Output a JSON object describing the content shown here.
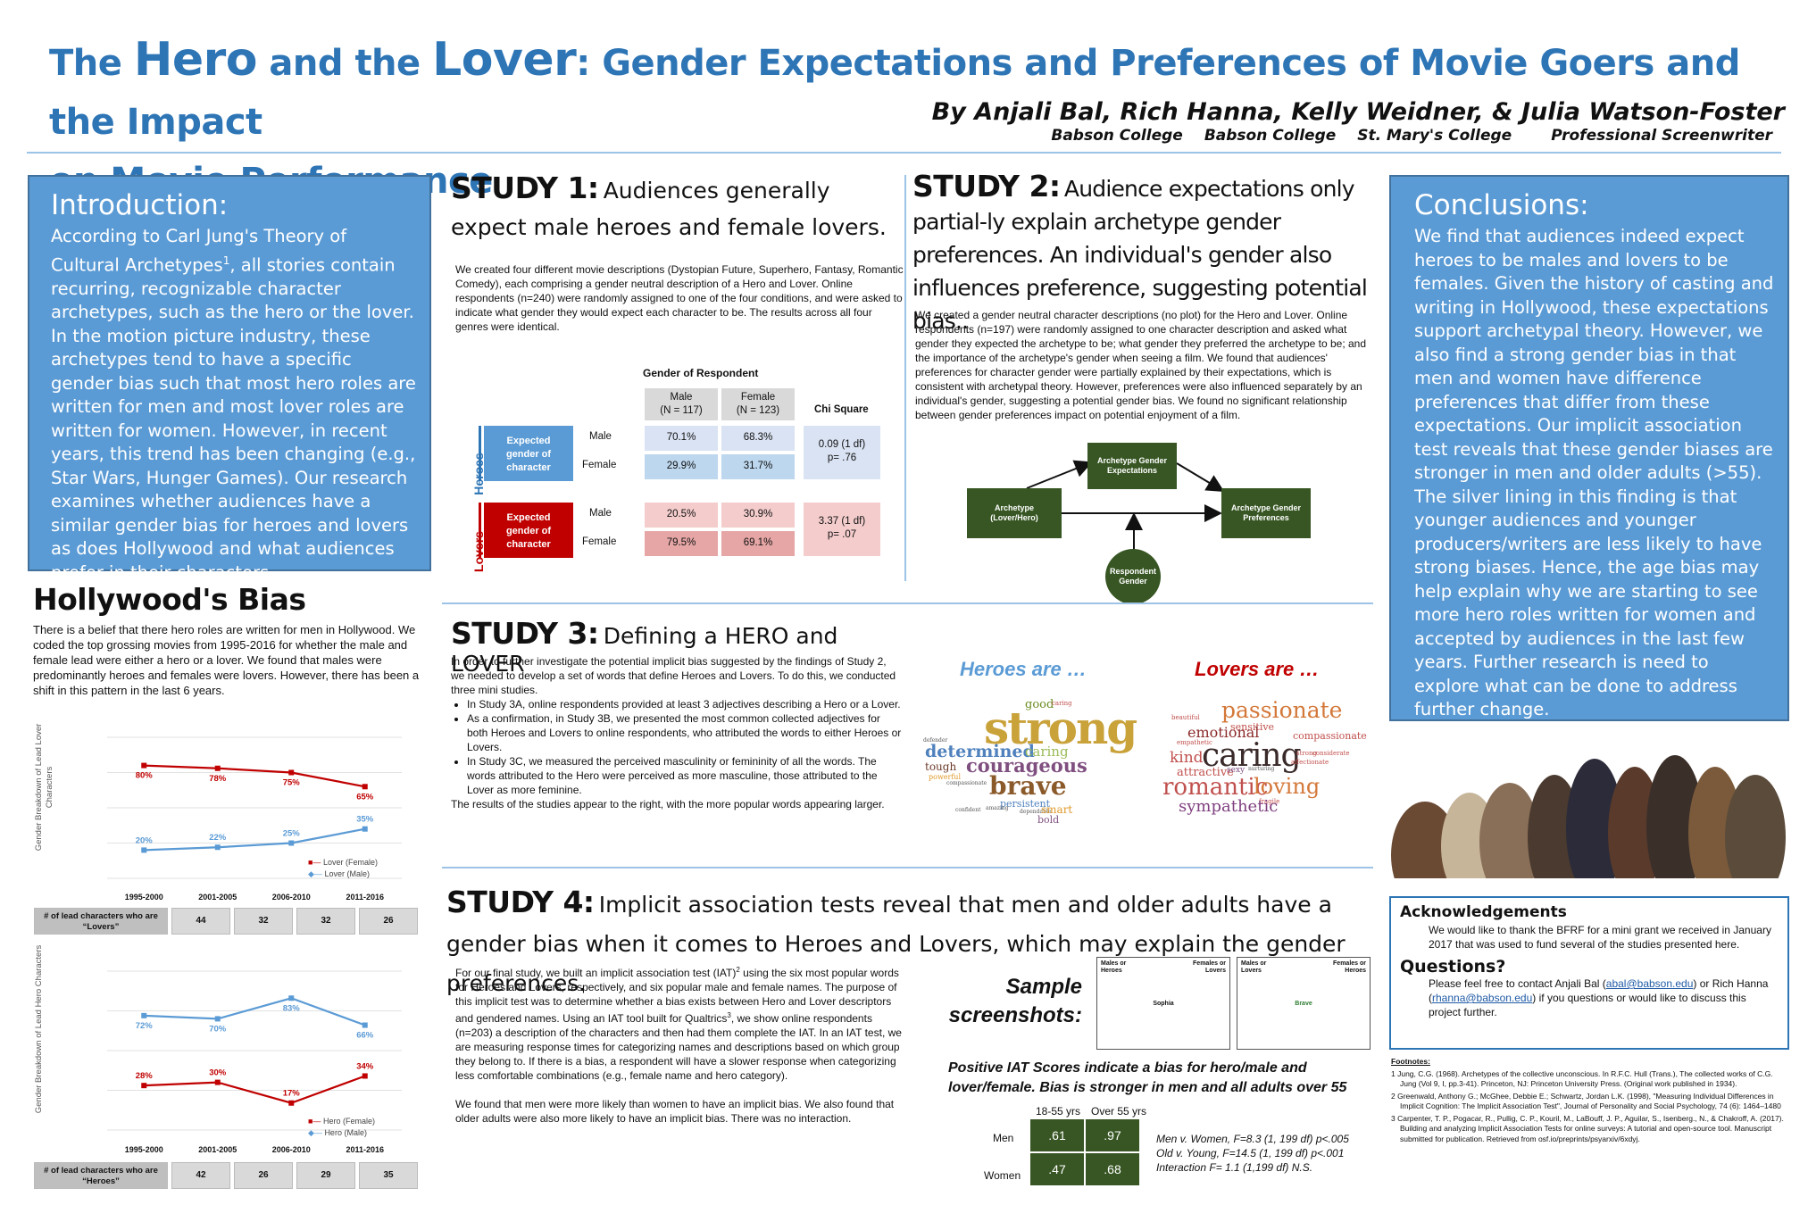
{
  "title": {
    "p1": "The ",
    "hero": "Hero",
    "p2": " and the ",
    "lover": "Lover",
    "p3": ": Gender Expectations and Preferences of Movie Goers and the Impact",
    "line2": "on Movie Performance"
  },
  "authors": "By Anjali Bal, Rich Hanna, Kelly Weidner, & Julia Watson-Foster",
  "affiliations": [
    "Babson College",
    "Babson College",
    "St. Mary's College",
    "Professional Screenwriter"
  ],
  "intro": {
    "heading": "Introduction:",
    "text_a": "According to Carl Jung's Theory of Cultural Archetypes",
    "sup": "1",
    "text_b": ", all stories contain recurring, recognizable character archetypes, such as the hero or the lover. In the motion picture industry, these archetypes tend to have a specific gender bias such that most hero roles are written for men and most lover roles are written for women. However, in recent years, this trend has been changing (e.g., Star Wars, Hunger Games). Our research examines whether audiences have a similar gender bias for heroes and lovers as does Hollywood and what audiences prefer in their characters."
  },
  "hollywood": {
    "heading": "Hollywood's Bias",
    "text": "There is a belief that there hero roles are written for men in Hollywood. We coded the top grossing movies from 1995-2016 for whether the male and female lead were either a hero or a lover. We found that males were predominantly heroes and females were lovers. However, there has been a shift in this pattern in the last 6 years.",
    "count_label_lovers": "# of lead characters who are “Lovers”",
    "count_label_heroes": "# of lead characters who are “Heroes”",
    "lover_counts": [
      "44",
      "32",
      "32",
      "26"
    ],
    "hero_counts": [
      "42",
      "26",
      "29",
      "35"
    ]
  },
  "chart_data": [
    {
      "type": "line",
      "ylabel": "Gender Breakdown of Lead Lover Characters",
      "categories": [
        "1995-2000",
        "2001-2005",
        "2006-2010",
        "2011-2016"
      ],
      "series": [
        {
          "name": "Lover (Female)",
          "values": [
            80,
            78,
            75,
            65
          ],
          "labels": [
            "80%",
            "78%",
            "75%",
            "65%"
          ],
          "color": "#c00000"
        },
        {
          "name": "Lover (Male)",
          "values": [
            20,
            22,
            25,
            35
          ],
          "labels": [
            "20%",
            "22%",
            "25%",
            "35%"
          ],
          "color": "#5b9bd5"
        }
      ]
    },
    {
      "type": "line",
      "ylabel": "Gender Breakdown of Lead Hero Characters",
      "categories": [
        "1995-2000",
        "2001-2005",
        "2006-2010",
        "2011-2016"
      ],
      "series": [
        {
          "name": "Hero (Female)",
          "values": [
            28,
            30,
            17,
            34
          ],
          "labels": [
            "28%",
            "30%",
            "17%",
            "34%"
          ],
          "color": "#c00000"
        },
        {
          "name": "Hero (Male)",
          "values": [
            72,
            70,
            83,
            66
          ],
          "labels": [
            "72%",
            "70%",
            "83%",
            "66%"
          ],
          "color": "#5b9bd5"
        }
      ]
    }
  ],
  "study1": {
    "label": "STUDY 1:",
    "title": "Audiences generally expect male heroes and female lovers.",
    "text": "We created four different movie descriptions (Dystopian Future, Superhero, Fantasy, Romantic Comedy), each comprising a gender neutral description of a Hero and Lover. Online respondents (n=240) were randomly assigned to one of the four conditions, and were asked to indicate what gender they would expect each character to be. The results across all four genres were identical.",
    "table": {
      "gender_header": "Gender of Respondent",
      "col_male": "Male",
      "col_male_n": "(N = 117)",
      "col_female": "Female",
      "col_female_n": "(N = 123)",
      "chi": "Chi Square",
      "heroes": "Heroes",
      "lovers": "Lovers",
      "expected": "Expected gender of character",
      "row_male": "Male",
      "row_female": "Female",
      "h_male": [
        "70.1%",
        "68.3%"
      ],
      "h_female": [
        "29.9%",
        "31.7%"
      ],
      "h_chi1": "0.09 (1 df)",
      "h_chi2": "p= .76",
      "l_male": [
        "20.5%",
        "30.9%"
      ],
      "l_female": [
        "79.5%",
        "69.1%"
      ],
      "l_chi1": "3.37 (1 df)",
      "l_chi2": "p= .07"
    }
  },
  "study2": {
    "label": "STUDY 2:",
    "title_a": "Audience expectations only partial-",
    "title_b": "ly explain archetype gender preferences. An individual's gender also influences preference, suggesting potential bias..",
    "text": "We created a gender neutral character descriptions (no plot) for the Hero and Lover. Online respondents (n=197) were randomly assigned to one character description and asked what gender they expected the archetype to be; what gender they preferred the archetype to be; and the importance of the archetype's gender when seeing a film. We found that audiences' preferences for character gender were partially explained by their expectations, which is consistent with archetypal theory. However, preferences were also influenced separately by an individual's gender, suggesting a potential gender bias. We found no significant relationship between gender preferences impact on potential enjoyment of a film.",
    "nodes": {
      "archetype": "Archetype (Lover/Hero)",
      "expect": "Archetype Gender Expectations",
      "pref": "Archetype Gender Preferences",
      "resp": "Respondent Gender"
    }
  },
  "study3": {
    "label": "STUDY 3:",
    "title": "Defining a HERO and LOVER",
    "intro": "In order to further investigate the potential implicit bias suggested by the findings of Study 2, we needed to develop a set of words that define Heroes and Lovers. To do this, we conducted three mini studies.",
    "bullets": [
      "In Study 3A, online respondents provided at least 3 adjectives describing a Hero or a Lover.",
      "As a confirmation, in Study 3B, we presented the most common collected adjectives for both Heroes and Lovers to online respondents, who attributed the words to either Heroes or Lovers.",
      "In Study 3C, we measured the perceived masculinity or femininity of all the words. The words attributed to the Hero were perceived as more masculine, those attributed to the Lover as more feminine."
    ],
    "outro": "The results of the studies appear to the right, with the more popular words appearing larger.",
    "heroes_are": "Heroes are …",
    "lovers_are": "Lovers are …",
    "hero_words": [
      "good",
      "caring",
      "strong",
      "determined",
      "caring",
      "tough",
      "courageous",
      "powerful",
      "compassionate",
      "brave",
      "persistent",
      "confident",
      "amazing",
      "dependable",
      "smart",
      "bold",
      "defender"
    ],
    "lover_words": [
      "passionate",
      "sensitive",
      "beautiful",
      "emotional",
      "compassionate",
      "empathetic",
      "kind",
      "caring",
      "considerate",
      "strong",
      "affectionate",
      "attractive",
      "sexy",
      "nurturing",
      "romantic",
      "loving",
      "fragile",
      "sympathetic"
    ]
  },
  "study4": {
    "label": "STUDY 4:",
    "title": "Implicit association tests reveal that men and older adults have a gender bias when it comes to Heroes and Lovers, which may explain the gender preferences.",
    "text_a": "For our final study, we built an implicit association test (IAT)",
    "sup2": "2",
    "text_b": " using the six most popular words for Heroes and Lovers, respectively, and six popular male and female names. The purpose of this implicit test was to determine whether a bias exists between Hero and Lover descriptors and gendered names. Using an IAT tool built for Qualtrics",
    "sup3": "3",
    "text_c": ", we show online respondents (n=203) a description of the characters and then had them complete the IAT. In an IAT test, we are measuring response times for categorizing names and descriptions based on which group they belong to. If there is a bias, a respondent will have a slower response when categorizing less comfortable combinations (e.g., female name and hero category).",
    "text2": "We found that men were more likely than women to have an implicit bias. We also found that older adults were also more likely to have an implicit bias. There was no interaction.",
    "sample": "Sample screenshots:",
    "shot1": {
      "tl": "Males or Heroes",
      "tr": "Females or Lovers",
      "center": "Sophia"
    },
    "shot2": {
      "tl": "Males or Lovers",
      "tr": "Females or Heroes",
      "center": "Brave"
    },
    "iat_title": "Positive IAT Scores indicate a bias for hero/male and lover/female. Bias is stronger in men and all adults over 55",
    "col1": "18-55 yrs",
    "col2": "Over 55 yrs",
    "row1": "Men",
    "row2": "Women",
    "men": [
      ".61",
      ".97"
    ],
    "women": [
      ".47",
      ".68"
    ],
    "stat1": "Men v. Women, F=8.3 (1, 199 df) p<.005",
    "stat2": "Old v. Young, F=14.5 (1, 199 df) p<.001",
    "stat3": "Interaction F= 1.1 (1,199 df) N.S."
  },
  "conclusions": {
    "heading": "Conclusions:",
    "text": "We find that audiences indeed expect heroes to be males and lovers to be females. Given the history of casting and writing in Hollywood, these expectations support archetypal theory. However, we also find a strong gender bias in that men and women have difference preferences that differ from these expectations. Our implicit association test reveals that these gender biases are stronger in men and older adults (>55). The silver lining in this finding is that younger audiences and younger producers/writers are less likely to have strong biases. Hence, the age bias may help explain why we are starting to see more hero roles written for women and accepted by audiences in the last few years. Further research is need to explore what can be done to address further change."
  },
  "ack": {
    "heading": "Acknowledgements",
    "text": "We would like to thank the BFRF for a mini grant we received in January 2017 that was used to fund several of the studies presented here.",
    "q_heading": "Questions?",
    "q_a": "Please feel free to contact Anjali Bal (",
    "email1": "abal@babson.edu",
    "q_b": ") or Rich Hanna (",
    "email2": "rhanna@babson.edu",
    "q_c": ") if you questions or would like to discuss this project further."
  },
  "footnotes": {
    "heading": "Footnotes:",
    "items": [
      "1 Jung, C.G. (1968). Archetypes of the collective unconscious. In R.F.C. Hull (Trans.), The collected works of C.G. Jung (Vol 9, I, pp.3-41). Princeton, NJ: Princeton University Press. (Original work published in 1934).",
      "2 Greenwald, Anthony G.; McGhee, Debbie E.; Schwartz, Jordan L.K. (1998), \"Measuring Individual Differences in Implicit Cognition: The Implicit Association Test\", Journal of Personality and Social Psychology, 74 (6): 1464–1480",
      "3 Carpenter, T. P., Pogacar, R., Pullig, C. P., Kouril, M., LaBouff, J. P., Aguilar, S., Isenberg., N., & Chakroff, A. (2017). Building and analyzing Implicit Association Tests for online surveys: A tutorial and open-source tool. Manuscript submitted for publication. Retrieved from osf.io/preprints/psyarxiv/6xdyj."
    ]
  }
}
